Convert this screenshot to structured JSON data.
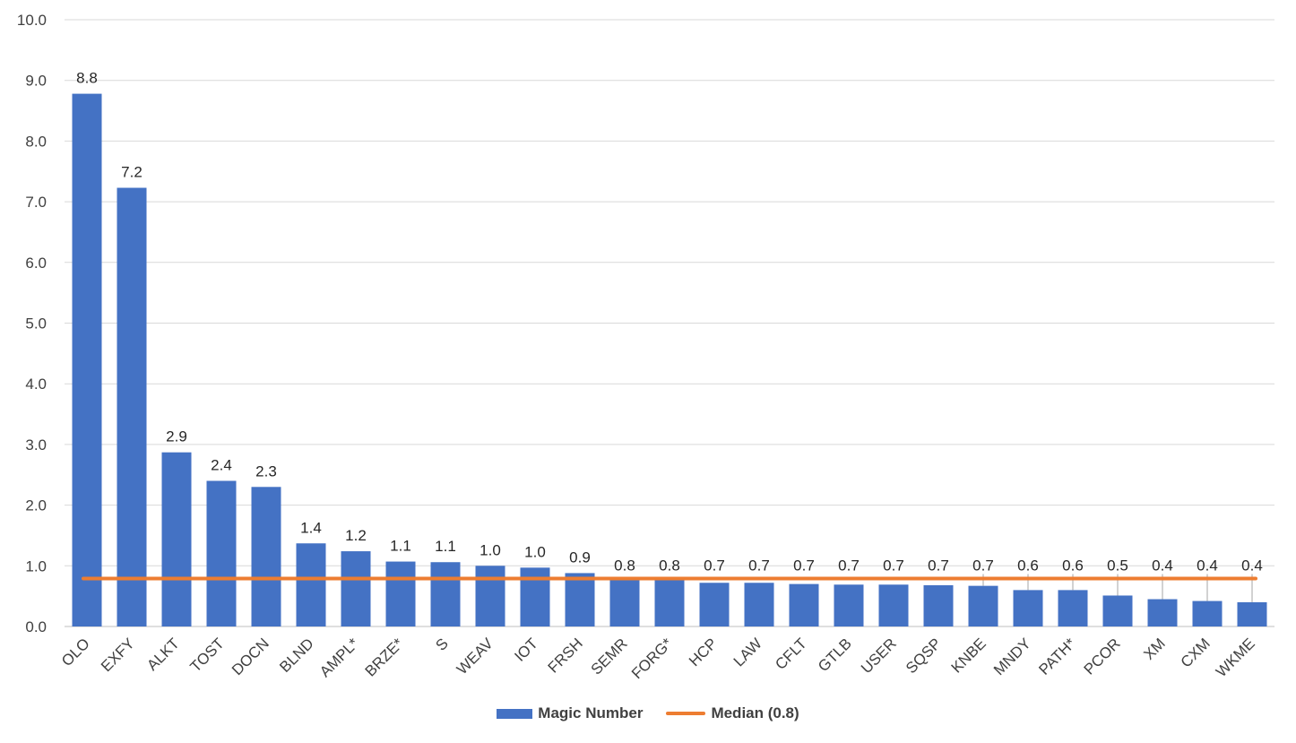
{
  "chart_data": {
    "type": "bar",
    "categories": [
      "OLO",
      "EXFY",
      "ALKT",
      "TOST",
      "DOCN",
      "BLND",
      "AMPL*",
      "BRZE*",
      "S",
      "WEAV",
      "IOT",
      "FRSH",
      "SEMR",
      "FORG*",
      "HCP",
      "LAW",
      "CFLT",
      "GTLB",
      "USER",
      "SQSP",
      "KNBE",
      "MNDY",
      "PATH*",
      "PCOR",
      "XM",
      "CXM",
      "WKME"
    ],
    "series": [
      {
        "name": "Magic Number",
        "color": "#4472C4",
        "values": [
          8.78,
          7.23,
          2.87,
          2.4,
          2.3,
          1.37,
          1.24,
          1.07,
          1.06,
          1.0,
          0.97,
          0.88,
          0.81,
          0.8,
          0.72,
          0.72,
          0.7,
          0.69,
          0.69,
          0.68,
          0.67,
          0.6,
          0.6,
          0.51,
          0.45,
          0.42,
          0.4
        ],
        "labels": [
          "8.8",
          "7.2",
          "2.9",
          "2.4",
          "2.3",
          "1.4",
          "1.2",
          "1.1",
          "1.1",
          "1.0",
          "1.0",
          "0.9",
          "0.8",
          "0.8",
          "0.7",
          "0.7",
          "0.7",
          "0.7",
          "0.7",
          "0.7",
          "0.7",
          "0.6",
          "0.6",
          "0.5",
          "0.4",
          "0.4",
          "0.4"
        ]
      },
      {
        "name": "Median (0.8)",
        "type": "line",
        "color": "#ED7D31",
        "value": 0.79
      }
    ],
    "title": "",
    "xlabel": "",
    "ylabel": "",
    "ylim": [
      0,
      10
    ],
    "yticks": [
      "0.0",
      "1.0",
      "2.0",
      "3.0",
      "4.0",
      "5.0",
      "6.0",
      "7.0",
      "8.0",
      "9.0",
      "10.0"
    ],
    "grid": true,
    "legend_position": "bottom"
  }
}
